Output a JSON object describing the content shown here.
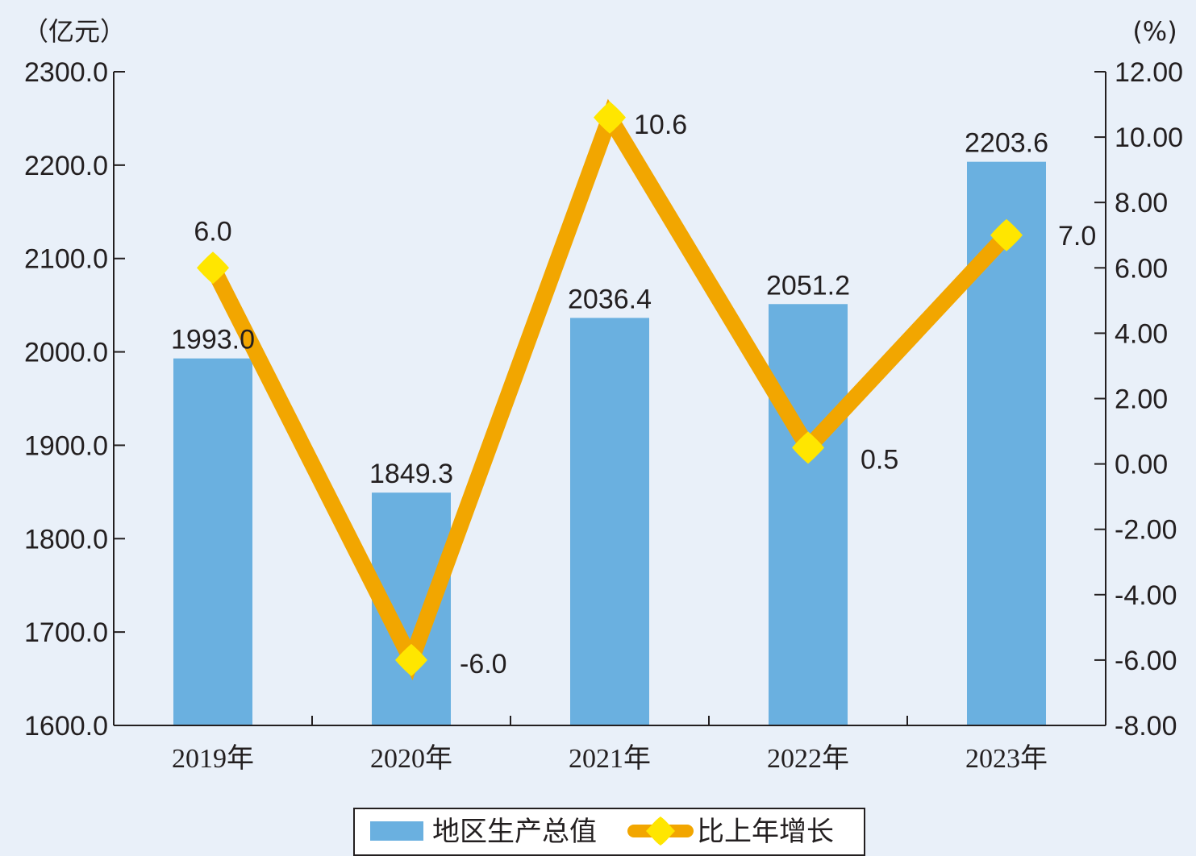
{
  "chart_data": {
    "type": "bar",
    "categories": [
      "2019年",
      "2020年",
      "2021年",
      "2022年",
      "2023年"
    ],
    "series": [
      {
        "name": "地区生产总值",
        "type": "bar",
        "axis": "left",
        "values": [
          1993.0,
          1849.3,
          2036.4,
          2051.2,
          2203.6
        ],
        "labels": [
          "1993.0",
          "1849.3",
          "2036.4",
          "2051.2",
          "2203.6"
        ],
        "color": "#6ab0e0"
      },
      {
        "name": "比上年增长",
        "type": "line",
        "axis": "right",
        "values": [
          6.0,
          -6.0,
          10.6,
          0.5,
          7.0
        ],
        "labels": [
          "6.0",
          "-6.0",
          "10.6",
          "0.5",
          "7.0"
        ],
        "line_color": "#f2a600",
        "marker_color": "#ffe600"
      }
    ],
    "y_left": {
      "unit": "（亿元）",
      "range": [
        1600,
        2300
      ],
      "ticks": [
        "1600.0",
        "1700.0",
        "1800.0",
        "1900.0",
        "2000.0",
        "2100.0",
        "2200.0",
        "2300.0"
      ]
    },
    "y_right": {
      "unit": "(%)",
      "range": [
        -8,
        12
      ],
      "ticks": [
        "-8.00",
        "-6.00",
        "-4.00",
        "-2.00",
        "0.00",
        "2.00",
        "4.00",
        "6.00",
        "8.00",
        "10.00",
        "12.00"
      ]
    },
    "legend": {
      "position": "bottom-center",
      "items": [
        "地区生产总值",
        "比上年增长"
      ]
    },
    "grid": false
  }
}
